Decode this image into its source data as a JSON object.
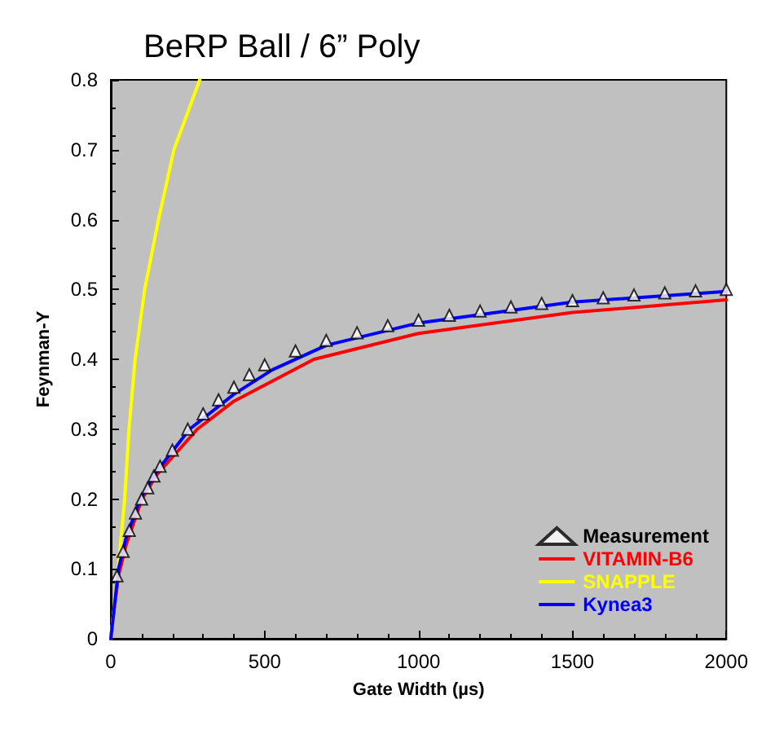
{
  "chart_data": {
    "type": "line",
    "title": "BeRP Ball / 6” Poly",
    "xlabel": "Gate Width (µs)",
    "ylabel": "Feynman-Y",
    "xlim": [
      0,
      2000
    ],
    "xticks": [
      0,
      500,
      1000,
      1500,
      2000
    ],
    "ylim": [
      0,
      0.8
    ],
    "yticks": [
      0,
      0.1,
      0.2,
      0.3,
      0.4,
      0.5,
      0.6,
      0.7,
      0.8
    ],
    "grid": false,
    "legend": "bottom right",
    "series": [
      {
        "name": "Measurement",
        "type": "scatter",
        "marker": "triangle",
        "color": "#ffffff",
        "x": [
          20,
          40,
          60,
          80,
          100,
          120,
          140,
          160,
          200,
          250,
          300,
          350,
          400,
          450,
          500,
          600,
          700,
          800,
          900,
          1000,
          1100,
          1200,
          1300,
          1400,
          1500,
          1600,
          1700,
          1800,
          1900,
          2000
        ],
        "values": [
          0.09,
          0.125,
          0.155,
          0.18,
          0.2,
          0.216,
          0.233,
          0.247,
          0.27,
          0.3,
          0.322,
          0.342,
          0.36,
          0.378,
          0.392,
          0.412,
          0.427,
          0.438,
          0.448,
          0.456,
          0.463,
          0.469,
          0.475,
          0.48,
          0.484,
          0.488,
          0.492,
          0.495,
          0.498,
          0.5
        ]
      },
      {
        "name": "VITAMIN-B6",
        "marker": "none",
        "color": "#ff0000",
        "x": [
          0,
          10,
          25,
          50,
          101,
          150,
          281,
          400,
          660,
          1000,
          1500,
          2000
        ],
        "values": [
          0,
          0.04,
          0.09,
          0.135,
          0.2,
          0.235,
          0.3,
          0.34,
          0.4,
          0.437,
          0.467,
          0.485
        ]
      },
      {
        "name": "SNAPPLE",
        "marker": "none",
        "color": "#ffff00",
        "x": [
          0,
          24,
          45,
          59,
          79,
          110,
          155,
          205,
          289
        ],
        "values": [
          0,
          0.1,
          0.2,
          0.3,
          0.4,
          0.5,
          0.6,
          0.7,
          0.8
        ]
      },
      {
        "name": "Kynea3",
        "marker": "none",
        "color": "#0000ff",
        "x": [
          0,
          10,
          25,
          50,
          96,
          150,
          256,
          400,
          525,
          700,
          1000,
          1500,
          2000
        ],
        "values": [
          0,
          0.04,
          0.1,
          0.145,
          0.2,
          0.24,
          0.3,
          0.35,
          0.385,
          0.42,
          0.452,
          0.482,
          0.497
        ]
      }
    ]
  }
}
